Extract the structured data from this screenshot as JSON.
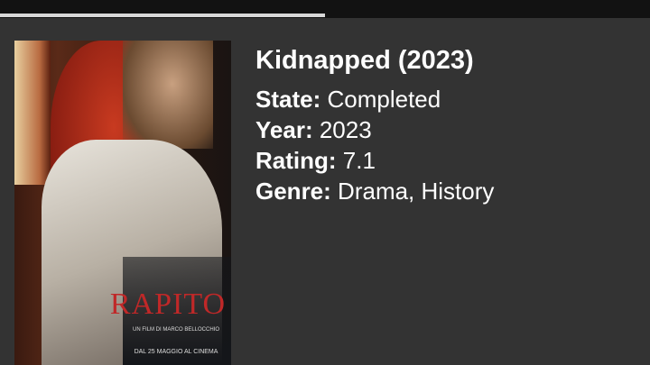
{
  "player": {
    "progress_percent": 50
  },
  "poster": {
    "title_text": "RAPITO",
    "tagline": "UN FILM DI MARCO BELLOCCHIO",
    "release": "DAL 25 MAGGIO AL CINEMA"
  },
  "movie": {
    "title": "Kidnapped (2023)",
    "fields": [
      {
        "label": "State:",
        "value": "Completed"
      },
      {
        "label": "Year:",
        "value": "2023"
      },
      {
        "label": "Rating:",
        "value": "7.1"
      },
      {
        "label": "Genre:",
        "value": "Drama, History"
      }
    ]
  },
  "colors": {
    "background": "#333333",
    "topbar": "#121212",
    "progress": "#d8d8d8",
    "poster_title": "#c02828"
  }
}
